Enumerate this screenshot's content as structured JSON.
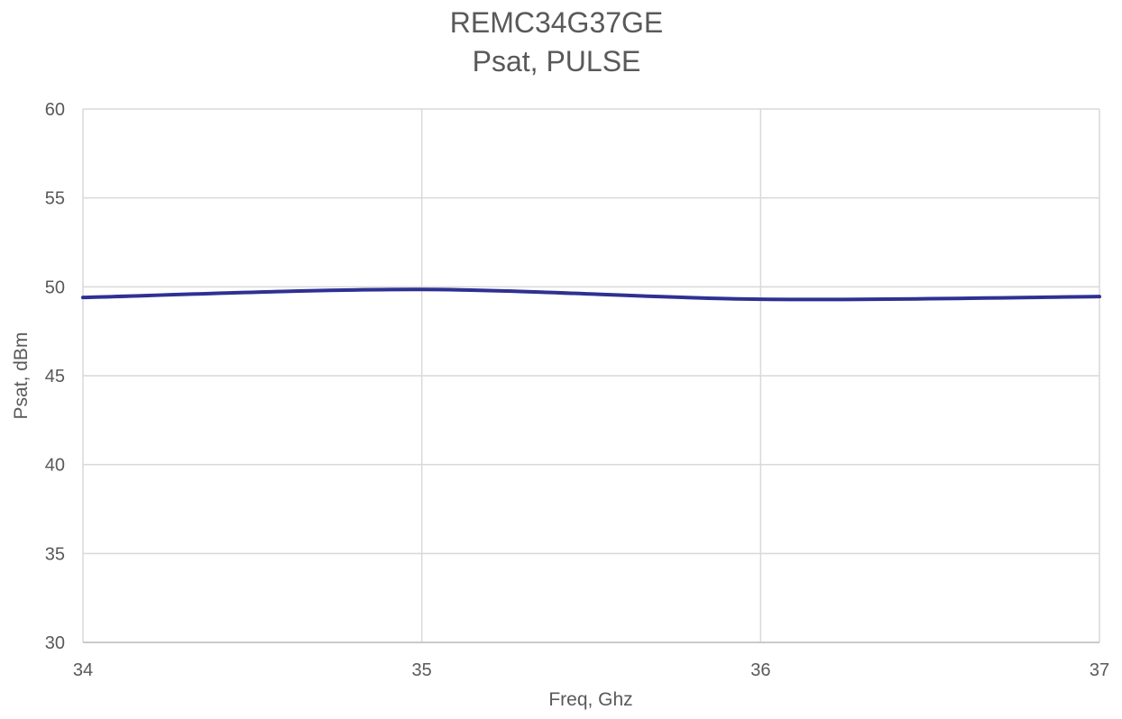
{
  "chart_data": {
    "type": "line",
    "title": [
      "REMC34G37GE",
      "Psat, PULSE"
    ],
    "xlabel": "Freq, Ghz",
    "ylabel": "Psat, dBm",
    "xlim": [
      34,
      37
    ],
    "ylim": [
      30,
      60
    ],
    "x_ticks": [
      "34",
      "35",
      "36",
      "37"
    ],
    "y_ticks": [
      "30",
      "35",
      "40",
      "45",
      "50",
      "55",
      "60"
    ],
    "grid": true,
    "legend": "none",
    "series": [
      {
        "x": [
          34,
          35,
          36,
          37
        ],
        "y": [
          49.4,
          49.85,
          49.3,
          49.45
        ],
        "color": "#2e3192",
        "smooth": true
      }
    ],
    "colors": {
      "grid": "#d9d9d9",
      "text": "#595959",
      "axis": "#bfbfbf"
    }
  }
}
